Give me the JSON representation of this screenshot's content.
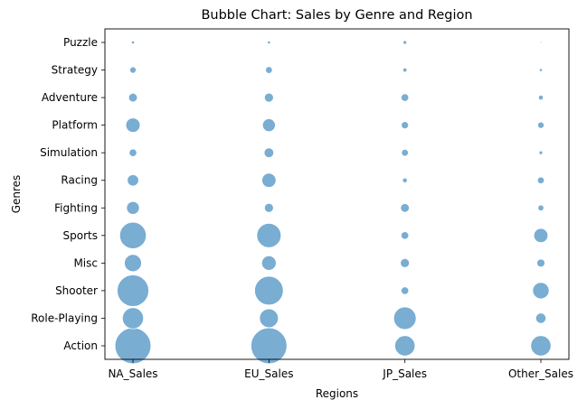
{
  "chart_data": {
    "type": "scatter",
    "subtype": "bubble",
    "title": "Bubble Chart: Sales by Genre and Region",
    "xlabel": "Regions",
    "ylabel": "Genres",
    "x_categories": [
      "NA_Sales",
      "EU_Sales",
      "JP_Sales",
      "Other_Sales"
    ],
    "y_categories": [
      "Action",
      "Role-Playing",
      "Shooter",
      "Misc",
      "Sports",
      "Fighting",
      "Racing",
      "Simulation",
      "Platform",
      "Adventure",
      "Strategy",
      "Puzzle"
    ],
    "grid": false,
    "legend": "none",
    "marker_color": "#1f77b4",
    "marker_alpha": 0.6,
    "points": [
      {
        "x": "NA_Sales",
        "y": "Action",
        "size": 1100
      },
      {
        "x": "EU_Sales",
        "y": "Action",
        "size": 1100
      },
      {
        "x": "JP_Sales",
        "y": "Action",
        "size": 350
      },
      {
        "x": "Other_Sales",
        "y": "Action",
        "size": 350
      },
      {
        "x": "NA_Sales",
        "y": "Role-Playing",
        "size": 380
      },
      {
        "x": "EU_Sales",
        "y": "Role-Playing",
        "size": 300
      },
      {
        "x": "JP_Sales",
        "y": "Role-Playing",
        "size": 430
      },
      {
        "x": "Other_Sales",
        "y": "Role-Playing",
        "size": 90
      },
      {
        "x": "NA_Sales",
        "y": "Shooter",
        "size": 850
      },
      {
        "x": "EU_Sales",
        "y": "Shooter",
        "size": 700
      },
      {
        "x": "JP_Sales",
        "y": "Shooter",
        "size": 50
      },
      {
        "x": "Other_Sales",
        "y": "Shooter",
        "size": 230
      },
      {
        "x": "NA_Sales",
        "y": "Misc",
        "size": 250
      },
      {
        "x": "EU_Sales",
        "y": "Misc",
        "size": 180
      },
      {
        "x": "JP_Sales",
        "y": "Misc",
        "size": 70
      },
      {
        "x": "Other_Sales",
        "y": "Misc",
        "size": 55
      },
      {
        "x": "NA_Sales",
        "y": "Sports",
        "size": 600
      },
      {
        "x": "EU_Sales",
        "y": "Sports",
        "size": 500
      },
      {
        "x": "JP_Sales",
        "y": "Sports",
        "size": 50
      },
      {
        "x": "Other_Sales",
        "y": "Sports",
        "size": 170
      },
      {
        "x": "NA_Sales",
        "y": "Fighting",
        "size": 140
      },
      {
        "x": "EU_Sales",
        "y": "Fighting",
        "size": 70
      },
      {
        "x": "JP_Sales",
        "y": "Fighting",
        "size": 65
      },
      {
        "x": "Other_Sales",
        "y": "Fighting",
        "size": 30
      },
      {
        "x": "NA_Sales",
        "y": "Racing",
        "size": 110
      },
      {
        "x": "EU_Sales",
        "y": "Racing",
        "size": 170
      },
      {
        "x": "JP_Sales",
        "y": "Racing",
        "size": 20
      },
      {
        "x": "Other_Sales",
        "y": "Racing",
        "size": 40
      },
      {
        "x": "NA_Sales",
        "y": "Simulation",
        "size": 50
      },
      {
        "x": "EU_Sales",
        "y": "Simulation",
        "size": 80
      },
      {
        "x": "JP_Sales",
        "y": "Simulation",
        "size": 40
      },
      {
        "x": "Other_Sales",
        "y": "Simulation",
        "size": 12
      },
      {
        "x": "NA_Sales",
        "y": "Platform",
        "size": 175
      },
      {
        "x": "EU_Sales",
        "y": "Platform",
        "size": 140
      },
      {
        "x": "JP_Sales",
        "y": "Platform",
        "size": 45
      },
      {
        "x": "Other_Sales",
        "y": "Platform",
        "size": 35
      },
      {
        "x": "NA_Sales",
        "y": "Adventure",
        "size": 65
      },
      {
        "x": "EU_Sales",
        "y": "Adventure",
        "size": 70
      },
      {
        "x": "JP_Sales",
        "y": "Adventure",
        "size": 50
      },
      {
        "x": "Other_Sales",
        "y": "Adventure",
        "size": 20
      },
      {
        "x": "NA_Sales",
        "y": "Strategy",
        "size": 35
      },
      {
        "x": "EU_Sales",
        "y": "Strategy",
        "size": 40
      },
      {
        "x": "JP_Sales",
        "y": "Strategy",
        "size": 15
      },
      {
        "x": "Other_Sales",
        "y": "Strategy",
        "size": 8
      },
      {
        "x": "NA_Sales",
        "y": "Puzzle",
        "size": 8
      },
      {
        "x": "EU_Sales",
        "y": "Puzzle",
        "size": 8
      },
      {
        "x": "JP_Sales",
        "y": "Puzzle",
        "size": 12
      },
      {
        "x": "Other_Sales",
        "y": "Puzzle",
        "size": 2
      }
    ]
  }
}
